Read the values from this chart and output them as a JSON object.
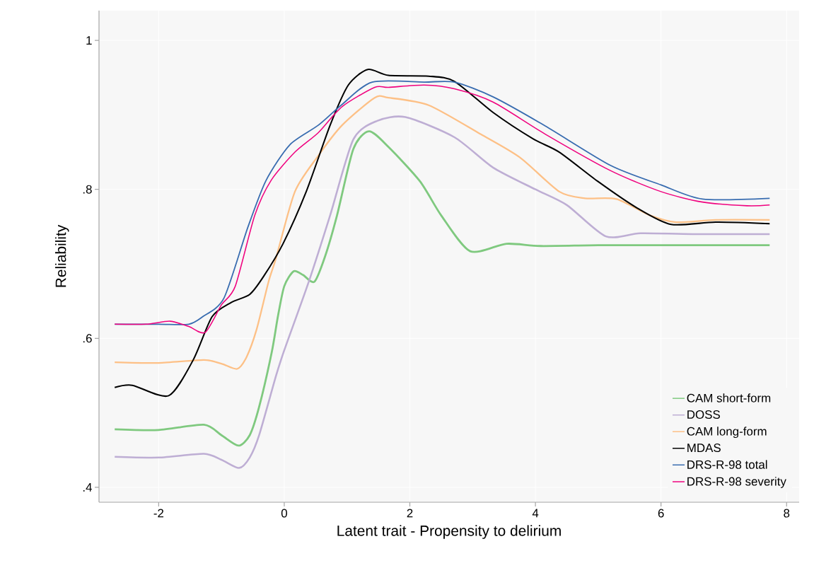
{
  "chart_data": {
    "type": "line",
    "xlabel": "Latent trait - Propensity to delirium",
    "ylabel": "Reliability",
    "xlim": [
      -2.95,
      8.2
    ],
    "ylim": [
      0.38,
      1.04
    ],
    "xticks": [
      -2,
      0,
      2,
      4,
      6,
      8
    ],
    "yticks": [
      {
        "value": 0.4,
        "label": ".4"
      },
      {
        "value": 0.6,
        "label": ".6"
      },
      {
        "value": 0.8,
        "label": ".8"
      },
      {
        "value": 1,
        "label": "1"
      }
    ],
    "grid": true,
    "legend": "bottom right",
    "series": [
      {
        "name": "CAM short-form",
        "color": "#7fc97f",
        "x": [
          -2.7,
          -2.0,
          -1.28,
          -1.0,
          -0.73,
          -0.55,
          -0.4,
          -0.2,
          -0.1,
          0.0,
          0.15,
          0.3,
          0.48,
          0.65,
          0.84,
          1.1,
          1.35,
          1.66,
          2.16,
          2.5,
          2.96,
          3.54,
          4.08,
          5.0,
          6.0,
          7.73
        ],
        "values": [
          0.478,
          0.477,
          0.484,
          0.47,
          0.456,
          0.47,
          0.508,
          0.581,
          0.63,
          0.67,
          0.69,
          0.685,
          0.676,
          0.71,
          0.765,
          0.854,
          0.878,
          0.857,
          0.811,
          0.765,
          0.717,
          0.727,
          0.724,
          0.725,
          0.725,
          0.725
        ]
      },
      {
        "name": "DOSS",
        "color": "#beaed4",
        "x": [
          -2.7,
          -2.0,
          -1.28,
          -1.0,
          -0.72,
          -0.55,
          -0.4,
          -0.13,
          0.0,
          0.39,
          0.73,
          1.1,
          1.48,
          1.93,
          2.71,
          3.33,
          4.0,
          4.5,
          5.12,
          5.67,
          6.5,
          7.73
        ],
        "values": [
          0.441,
          0.44,
          0.445,
          0.437,
          0.426,
          0.44,
          0.47,
          0.55,
          0.584,
          0.676,
          0.765,
          0.867,
          0.892,
          0.897,
          0.87,
          0.829,
          0.8,
          0.779,
          0.737,
          0.741,
          0.74,
          0.74
        ]
      },
      {
        "name": "CAM long-form",
        "color": "#fdc086",
        "x": [
          -2.7,
          -2.0,
          -1.28,
          -1.0,
          -0.75,
          -0.6,
          -0.44,
          -0.25,
          -0.13,
          0.17,
          0.54,
          0.92,
          1.44,
          1.66,
          2.3,
          3.13,
          3.75,
          4.38,
          4.79,
          5.29,
          5.83,
          6.24,
          6.87,
          7.73
        ],
        "values": [
          0.568,
          0.567,
          0.571,
          0.566,
          0.559,
          0.575,
          0.612,
          0.676,
          0.708,
          0.797,
          0.845,
          0.886,
          0.923,
          0.923,
          0.913,
          0.874,
          0.843,
          0.797,
          0.788,
          0.787,
          0.765,
          0.756,
          0.759,
          0.759
        ]
      },
      {
        "name": "MDAS",
        "color": "#000000",
        "x": [
          -2.7,
          -2.42,
          -1.84,
          -1.45,
          -1.15,
          -0.85,
          -0.55,
          -0.33,
          -0.02,
          0.35,
          0.73,
          1.02,
          1.33,
          1.66,
          2.3,
          2.71,
          3.33,
          3.96,
          4.38,
          4.99,
          5.62,
          6.16,
          6.87,
          7.73
        ],
        "values": [
          0.534,
          0.537,
          0.523,
          0.571,
          0.629,
          0.648,
          0.659,
          0.683,
          0.727,
          0.797,
          0.886,
          0.94,
          0.961,
          0.953,
          0.952,
          0.945,
          0.903,
          0.868,
          0.85,
          0.811,
          0.775,
          0.753,
          0.756,
          0.754
        ]
      },
      {
        "name": "DRS-R-98 total",
        "color": "#386cb0",
        "x": [
          -2.7,
          -2.0,
          -1.52,
          -1.3,
          -0.96,
          -0.58,
          -0.29,
          0.09,
          0.54,
          0.92,
          1.4,
          2.23,
          2.71,
          3.33,
          4.16,
          5.2,
          6.0,
          6.66,
          7.73
        ],
        "values": [
          0.619,
          0.619,
          0.619,
          0.629,
          0.654,
          0.749,
          0.812,
          0.86,
          0.886,
          0.914,
          0.944,
          0.944,
          0.944,
          0.924,
          0.885,
          0.832,
          0.806,
          0.787,
          0.788
        ]
      },
      {
        "name": "DRS-R-98 severity",
        "color": "#f0027f",
        "x": [
          -2.7,
          -2.2,
          -1.82,
          -1.52,
          -1.26,
          -1.0,
          -0.78,
          -0.47,
          -0.21,
          0.17,
          0.54,
          0.92,
          1.44,
          1.66,
          2.23,
          2.71,
          3.33,
          4.16,
          5.2,
          6.0,
          6.66,
          7.37,
          7.73
        ],
        "values": [
          0.619,
          0.619,
          0.623,
          0.616,
          0.608,
          0.645,
          0.67,
          0.765,
          0.812,
          0.85,
          0.876,
          0.911,
          0.937,
          0.937,
          0.94,
          0.935,
          0.917,
          0.874,
          0.825,
          0.797,
          0.783,
          0.778,
          0.779
        ]
      }
    ]
  }
}
